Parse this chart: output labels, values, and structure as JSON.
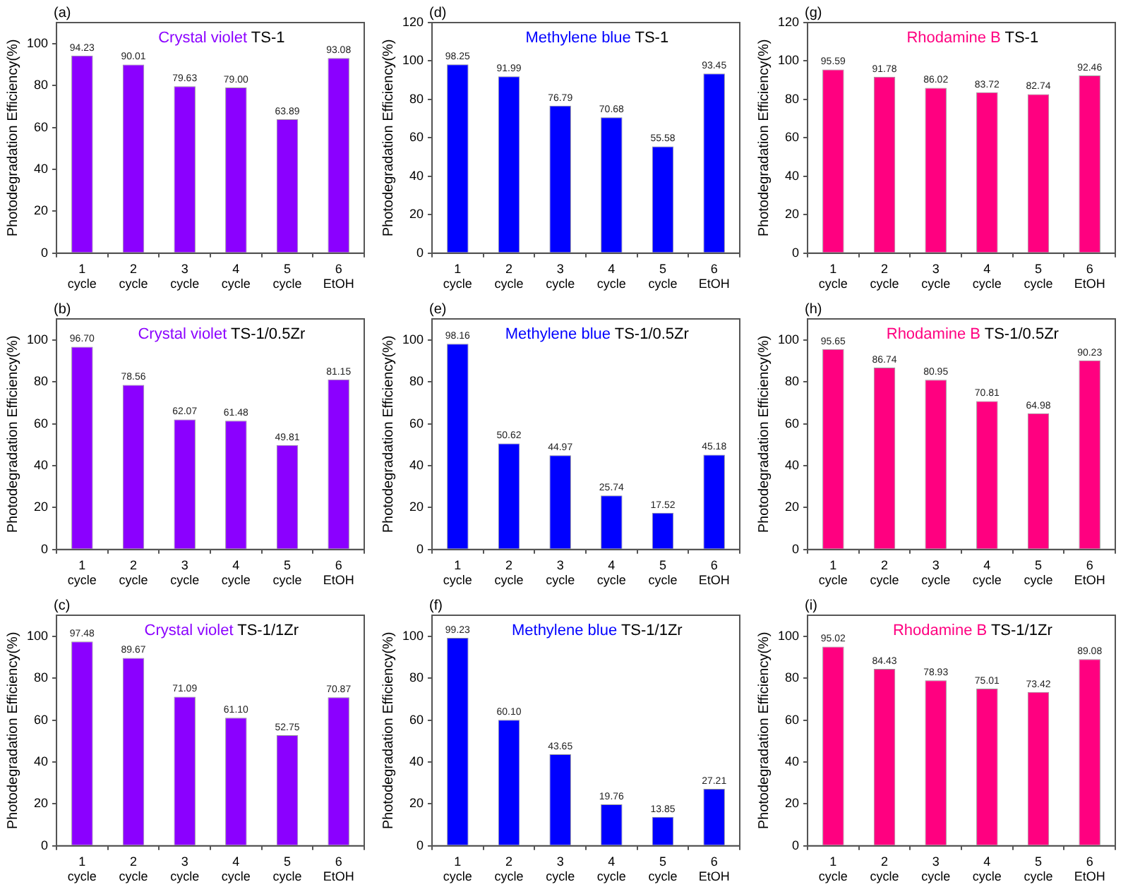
{
  "chart_data": [
    {
      "type": "bar",
      "title": "Crystal violet",
      "subtitle": "TS-1",
      "annotations": [
        "(a)"
      ],
      "ylabel": "Photodegradation Efficiency(%)",
      "categories": [
        "1 cycle",
        "2 cycle",
        "3 cycle",
        "4 cycle",
        "5 cycle",
        "6 EtOH"
      ],
      "values": [
        94.23,
        90.01,
        79.63,
        79.0,
        63.89,
        93.08
      ],
      "value_labels": [
        "94.23",
        "90.01",
        "79.63",
        "79.00",
        "63.89",
        "93.08"
      ],
      "color": "#8b00ff",
      "ylim": [
        0,
        110
      ],
      "yticks": [
        0,
        20,
        40,
        60,
        80,
        100
      ]
    },
    {
      "type": "bar",
      "title": "Crystal violet",
      "subtitle": "TS-1/0.5Zr",
      "annotations": [
        "(b)"
      ],
      "ylabel": "Photodegradation Efficiency(%)",
      "categories": [
        "1 cycle",
        "2 cycle",
        "3 cycle",
        "4 cycle",
        "5 cycle",
        "6 EtOH"
      ],
      "values": [
        96.7,
        78.56,
        62.07,
        61.48,
        49.81,
        81.15
      ],
      "value_labels": [
        "96.70",
        "78.56",
        "62.07",
        "61.48",
        "49.81",
        "81.15"
      ],
      "color": "#8b00ff",
      "ylim": [
        0,
        110
      ],
      "yticks": [
        0,
        20,
        40,
        60,
        80,
        100
      ]
    },
    {
      "type": "bar",
      "title": "Crystal violet",
      "subtitle": "TS-1/1Zr",
      "annotations": [
        "(c)"
      ],
      "ylabel": "Photodegradation Efficiency(%)",
      "categories": [
        "1 cycle",
        "2 cycle",
        "3 cycle",
        "4 cycle",
        "5 cycle",
        "6 EtOH"
      ],
      "values": [
        97.48,
        89.67,
        71.09,
        61.1,
        52.75,
        70.87
      ],
      "value_labels": [
        "97.48",
        "89.67",
        "71.09",
        "61.10",
        "52.75",
        "70.87"
      ],
      "color": "#8b00ff",
      "ylim": [
        0,
        110
      ],
      "yticks": [
        0,
        20,
        40,
        60,
        80,
        100
      ]
    },
    {
      "type": "bar",
      "title": "Methylene blue",
      "subtitle": "TS-1",
      "annotations": [
        "(d)"
      ],
      "ylabel": "Photodegradation Efficiency(%)",
      "categories": [
        "1 cycle",
        "2 cycle",
        "3 cycle",
        "4 cycle",
        "5 cycle",
        "6 EtOH"
      ],
      "values": [
        98.25,
        91.99,
        76.79,
        70.68,
        55.58,
        93.45
      ],
      "value_labels": [
        "98.25",
        "91.99",
        "76.79",
        "70.68",
        "55.58",
        "93.45"
      ],
      "color": "#0000ff",
      "ylim": [
        0,
        120
      ],
      "yticks": [
        0,
        20,
        40,
        60,
        80,
        100,
        120
      ]
    },
    {
      "type": "bar",
      "title": "Methylene blue",
      "subtitle": "TS-1/0.5Zr",
      "annotations": [
        "(e)"
      ],
      "ylabel": "Photodegradation Efficiency(%)",
      "categories": [
        "1 cycle",
        "2 cycle",
        "3 cycle",
        "4 cycle",
        "5 cycle",
        "6 EtOH"
      ],
      "values": [
        98.16,
        50.62,
        44.97,
        25.74,
        17.52,
        45.18
      ],
      "value_labels": [
        "98.16",
        "50.62",
        "44.97",
        "25.74",
        "17.52",
        "45.18"
      ],
      "color": "#0000ff",
      "ylim": [
        0,
        110
      ],
      "yticks": [
        0,
        20,
        40,
        60,
        80,
        100
      ]
    },
    {
      "type": "bar",
      "title": "Methylene blue",
      "subtitle": "TS-1/1Zr",
      "annotations": [
        "(f)"
      ],
      "ylabel": "Photodegradation Efficiency(%)",
      "categories": [
        "1 cycle",
        "2 cycle",
        "3 cycle",
        "4 cycle",
        "5 cycle",
        "6 EtOH"
      ],
      "values": [
        99.23,
        60.1,
        43.65,
        19.76,
        13.85,
        27.21
      ],
      "value_labels": [
        "99.23",
        "60.10",
        "43.65",
        "19.76",
        "13.85",
        "27.21"
      ],
      "color": "#0000ff",
      "ylim": [
        0,
        110
      ],
      "yticks": [
        0,
        20,
        40,
        60,
        80,
        100
      ]
    },
    {
      "type": "bar",
      "title": "Rhodamine B",
      "subtitle": "TS-1",
      "annotations": [
        "(g)"
      ],
      "ylabel": "Photodegradation Efficiency(%)",
      "categories": [
        "1 cycle",
        "2 cycle",
        "3 cycle",
        "4 cycle",
        "5 cycle",
        "6 EtOH"
      ],
      "values": [
        95.59,
        91.78,
        86.02,
        83.72,
        82.74,
        92.46
      ],
      "value_labels": [
        "95.59",
        "91.78",
        "86.02",
        "83.72",
        "82.74",
        "92.46"
      ],
      "color": "#ff0080",
      "ylim": [
        0,
        120
      ],
      "yticks": [
        0,
        20,
        40,
        60,
        80,
        100,
        120
      ]
    },
    {
      "type": "bar",
      "title": "Rhodamine B",
      "subtitle": "TS-1/0.5Zr",
      "annotations": [
        "(h)"
      ],
      "ylabel": "Photodegradation Efficiency(%)",
      "categories": [
        "1 cycle",
        "2 cycle",
        "3 cycle",
        "4 cycle",
        "5 cycle",
        "6 EtOH"
      ],
      "values": [
        95.65,
        86.74,
        80.95,
        70.81,
        64.98,
        90.23
      ],
      "value_labels": [
        "95.65",
        "86.74",
        "80.95",
        "70.81",
        "64.98",
        "90.23"
      ],
      "color": "#ff0080",
      "ylim": [
        0,
        110
      ],
      "yticks": [
        0,
        20,
        40,
        60,
        80,
        100
      ]
    },
    {
      "type": "bar",
      "title": "Rhodamine B",
      "subtitle": "TS-1/1Zr",
      "annotations": [
        "(i)"
      ],
      "ylabel": "Photodegradation Efficiency(%)",
      "categories": [
        "1 cycle",
        "2 cycle",
        "3 cycle",
        "4 cycle",
        "5 cycle",
        "6 EtOH"
      ],
      "values": [
        95.02,
        84.43,
        78.93,
        75.01,
        73.42,
        89.08
      ],
      "value_labels": [
        "95.02",
        "84.43",
        "78.93",
        "75.01",
        "73.42",
        "89.08"
      ],
      "color": "#ff0080",
      "ylim": [
        0,
        110
      ],
      "yticks": [
        0,
        20,
        40,
        60,
        80,
        100
      ]
    }
  ]
}
